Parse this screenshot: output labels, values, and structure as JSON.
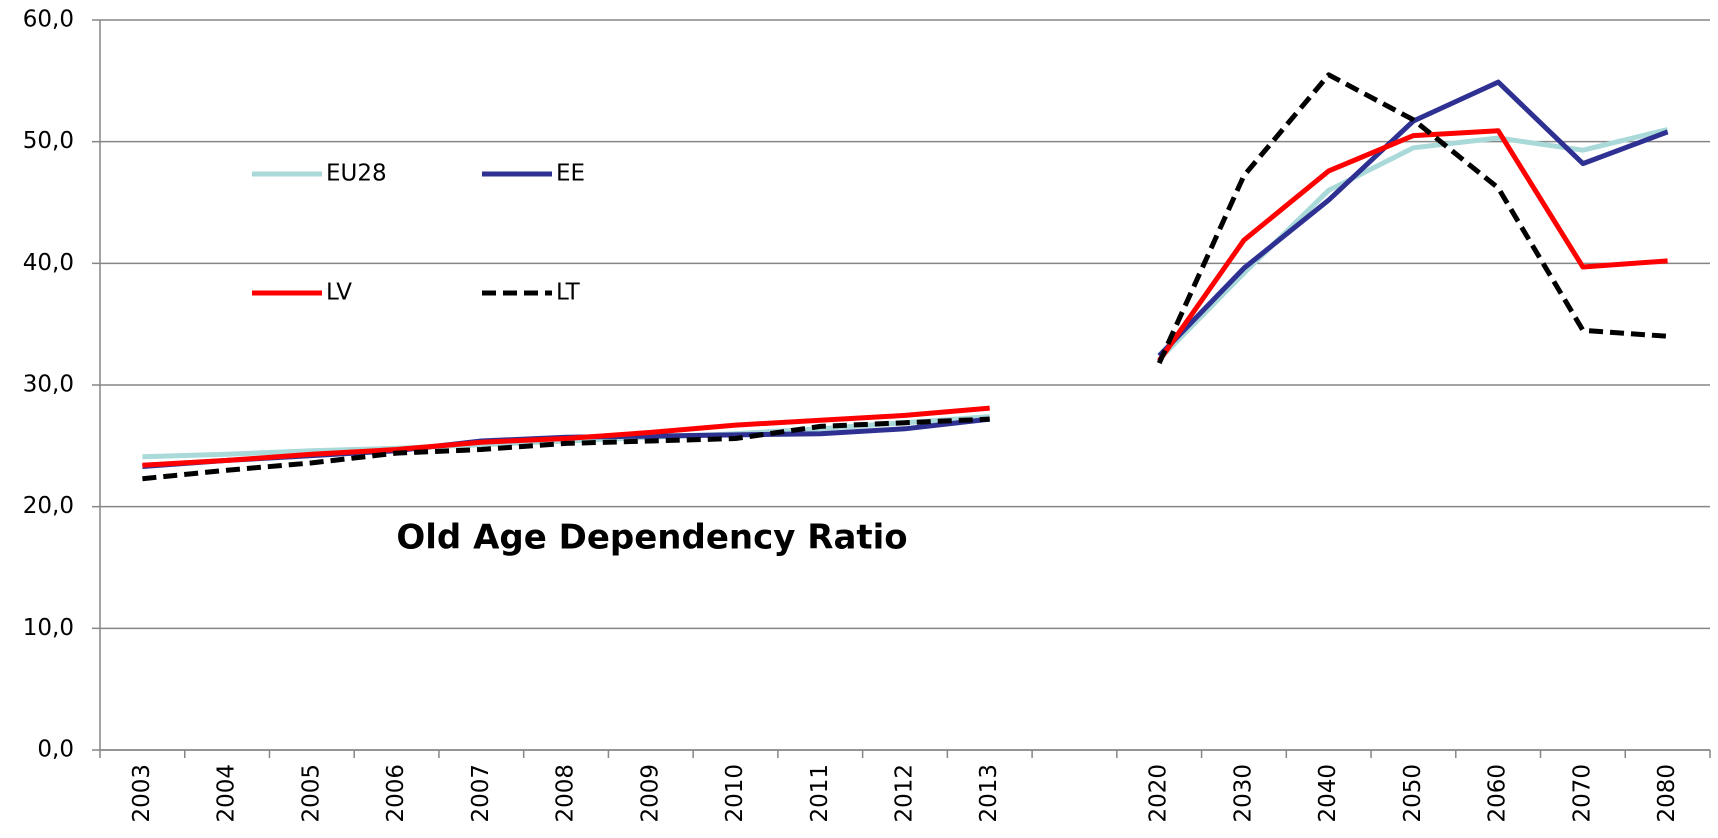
{
  "chart_data": {
    "type": "line",
    "title": "Old Age Dependency Ratio",
    "categories": [
      "2003",
      "2004",
      "2005",
      "2006",
      "2007",
      "2008",
      "2009",
      "2010",
      "2011",
      "2012",
      "2013",
      null,
      "2020",
      "2030",
      "2040",
      "2050",
      "2060",
      "2070",
      "2080"
    ],
    "series": [
      {
        "name": "EU28",
        "color": "#a9d9d9",
        "values": [
          24.1,
          24.3,
          24.6,
          24.8,
          25.1,
          25.4,
          25.7,
          26.0,
          26.4,
          26.9,
          27.4,
          null,
          32.1,
          39.2,
          46.0,
          49.5,
          50.3,
          49.3,
          51.0
        ]
      },
      {
        "name": "EE",
        "color": "#2e3192",
        "values": [
          23.3,
          23.8,
          24.2,
          24.6,
          25.4,
          25.7,
          25.8,
          25.9,
          26.0,
          26.4,
          27.2,
          null,
          32.4,
          39.6,
          45.2,
          51.7,
          54.9,
          48.2,
          50.8
        ]
      },
      {
        "name": "LV",
        "color": "#ff0000",
        "values": [
          23.4,
          23.8,
          24.3,
          24.7,
          25.3,
          25.6,
          26.1,
          26.7,
          27.1,
          27.5,
          28.1,
          null,
          32.0,
          41.9,
          47.6,
          50.5,
          50.9,
          39.7,
          40.2
        ]
      },
      {
        "name": "LT",
        "color": "#000000",
        "dashed": true,
        "values": [
          22.3,
          23.0,
          23.6,
          24.4,
          24.7,
          25.2,
          25.4,
          25.6,
          26.6,
          26.9,
          27.2,
          null,
          31.8,
          47.2,
          55.5,
          51.8,
          46.2,
          34.5,
          34.0
        ]
      }
    ],
    "ylim": [
      0,
      60
    ],
    "yticks": [
      {
        "value": 0,
        "label": "0,0"
      },
      {
        "value": 10,
        "label": "10,0"
      },
      {
        "value": 20,
        "label": "20,0"
      },
      {
        "value": 30,
        "label": "30,0"
      },
      {
        "value": 40,
        "label": "40,0"
      },
      {
        "value": 50,
        "label": "50,0"
      },
      {
        "value": 60,
        "label": "60,0"
      }
    ],
    "grid": true,
    "legend": "upper left"
  }
}
